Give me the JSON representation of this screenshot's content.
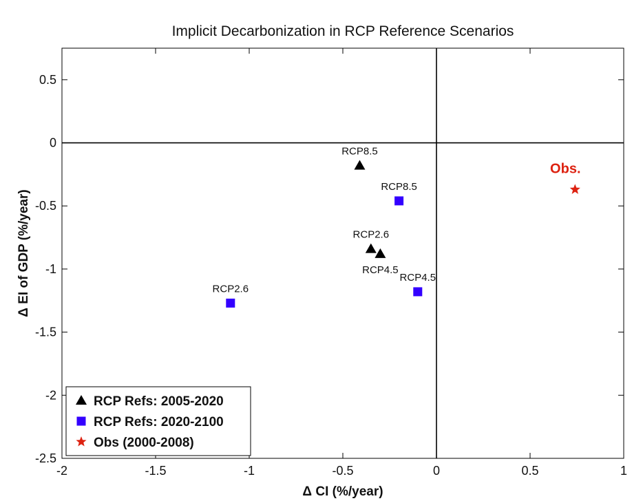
{
  "chart_data": {
    "type": "scatter",
    "title": "Implicit Decarbonization in RCP Reference Scenarios",
    "xlabel": "Δ CI (%/year)",
    "ylabel": "Δ EI of GDP (%/year)",
    "xlim": [
      -2,
      1
    ],
    "ylim": [
      -2.5,
      0.75
    ],
    "xticks": [
      -2,
      -1.5,
      -1,
      -0.5,
      0,
      0.5,
      1
    ],
    "xtick_labels": [
      "-2",
      "-1.5",
      "-1",
      "-0.5",
      "0",
      "0.5",
      "1"
    ],
    "yticks": [
      -2.5,
      -2,
      -1.5,
      -1,
      -0.5,
      0,
      0.5
    ],
    "ytick_labels": [
      "-2.5",
      "-2",
      "-1.5",
      "-1",
      "-0.5",
      "0",
      "0.5"
    ],
    "grid": false,
    "reference_lines": {
      "x": 0,
      "y": 0
    },
    "legend_position": "bottom-left",
    "series": [
      {
        "name": "RCP Refs: 2005-2020",
        "marker": "triangle",
        "color": "#000000",
        "points": [
          {
            "x": -0.41,
            "y": -0.18,
            "label": "RCP8.5",
            "label_pos": "above"
          },
          {
            "x": -0.35,
            "y": -0.84,
            "label": "RCP2.6",
            "label_pos": "above"
          },
          {
            "x": -0.3,
            "y": -0.88,
            "label": "RCP4.5",
            "label_pos": "below"
          }
        ]
      },
      {
        "name": "RCP Refs: 2020-2100",
        "marker": "square",
        "color": "#3300ff",
        "points": [
          {
            "x": -0.2,
            "y": -0.46,
            "label": "RCP8.5",
            "label_pos": "above"
          },
          {
            "x": -1.1,
            "y": -1.27,
            "label": "RCP2.6",
            "label_pos": "above"
          },
          {
            "x": -0.1,
            "y": -1.18,
            "label": "RCP4.5",
            "label_pos": "above"
          }
        ]
      },
      {
        "name": "Obs (2000-2008)",
        "marker": "star",
        "color": "#dd2211",
        "points": [
          {
            "x": 0.74,
            "y": -0.37,
            "label": "Obs.",
            "label_pos": "above"
          }
        ]
      }
    ]
  }
}
